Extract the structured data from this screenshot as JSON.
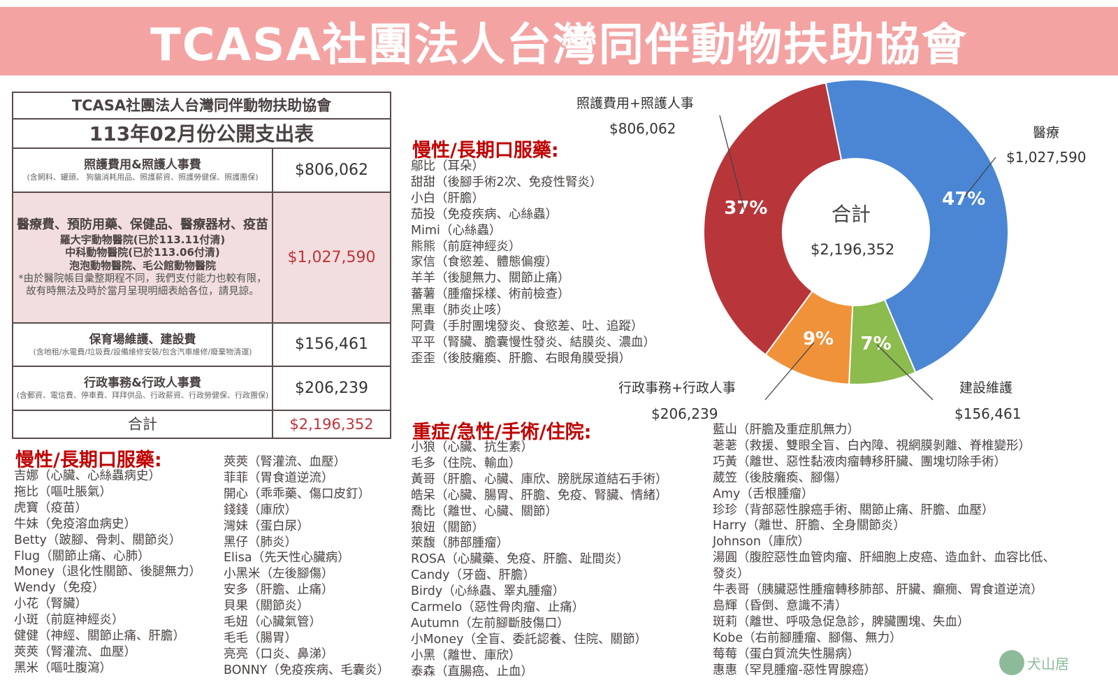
{
  "banner_title": "TCASA社團法人台灣同伴動物扶助協會",
  "table": {
    "org": "TCASA社團法人台灣同伴動物扶助協會",
    "title": "113年02月份公開支出表",
    "rows": [
      {
        "label": "照護費用&照護人事費",
        "note": "(含飼料、罐頭、 狗貓消耗用品、照護薪資、照護勞健保、照護團保)",
        "amount": "$806,062"
      },
      {
        "label": "醫療費、預防用藥、保健品、醫療器材、疫苗",
        "hosp1": "羅大宇動物醫院(已於113.11付清)",
        "hosp2": "中科動物醫院(已於113.06付清)",
        "hosp3": "泡泡動物醫院、毛公館動物醫院",
        "note": "*由於醫院帳目彙整期程不同，我們支付能力也較有限，故有時無法及時於當月呈現明細表給各位，請見諒。",
        "amount": "$1,027,590"
      },
      {
        "label": "保育場維護、建設費",
        "note": "(含地租/水電費/垃圾費/設備維修安裝/包含汽車維修/廢棄物清運)",
        "amount": "$156,461"
      },
      {
        "label": "行政事務&行政人事費",
        "note": "(含郵資、電信費、停車費、拜拜供品、行政薪資、行政勞健保、行政團保)",
        "amount": "$206,239"
      }
    ],
    "total_label": "合計",
    "total": "$2,196,352"
  },
  "chart_data": {
    "type": "pie",
    "donut": true,
    "center_label": "合計",
    "center_value": "$2,196,352",
    "slices": [
      {
        "name": "醫療",
        "amount": "$1,027,590",
        "value": 1027590,
        "pct": "47%",
        "color": "#4a86d4"
      },
      {
        "name": "建設維護",
        "amount": "$156,461",
        "value": 156461,
        "pct": "7%",
        "color": "#8cbb4e"
      },
      {
        "name": "行政事務+行政人事",
        "amount": "$206,239",
        "value": 206239,
        "pct": "9%",
        "color": "#f0923a"
      },
      {
        "name": "照護費用+照護人事",
        "amount": "$806,062",
        "value": 806062,
        "pct": "37%",
        "color": "#b8353a"
      }
    ]
  },
  "chronic_heading": "慢性/長期口服藥:",
  "critical_heading": "重症/急性/手術/住院:",
  "chronic_mid": [
    "鄔比（耳朵）",
    "甜甜（後腳手術2次、免疫性腎炎）",
    "小白（肝膽）",
    "茄投（免疫疾病、心絲蟲）",
    "Mimi（心絲蟲）",
    "熊熊（前庭神經炎）",
    "家信（食慾差、體態偏瘦）",
    "羊羊（後腿無力、關節止痛）",
    "蕃薯（腫瘤採樣、術前檢查）",
    "黑車（肺炎止咳）",
    "阿貴（手肘團塊發炎、食慾差、吐、追蹤）",
    "平平（腎臟、膽囊慢性發炎、結膜炎、濃血）",
    "歪歪（後肢癱瘓、肝膽、右眼角膜受損）"
  ],
  "chronic_left1": [
    "吉娜（心臟、心絲蟲病史）",
    "拖比（嘔吐脹氣）",
    "虎寶（疫苗）",
    "牛妹（免疫溶血病史）",
    "Betty（跛腳、骨刺、關節炎）",
    "Flug（關節止痛、心肺）",
    "Money（退化性關節、後腿無力）",
    "Wendy（免疫）",
    "小花（腎臟）",
    "小斑（前庭神經炎）",
    "健健（神經、關節止痛、肝膽）",
    "莢莢（腎灌流、血壓）",
    "黑米（嘔吐腹瀉）"
  ],
  "chronic_left2": [
    "莢莢（腎灌流、血壓）",
    "菲菲（胃食道逆流）",
    "開心（乖乖藥、傷口皮釘）",
    "錢錢（庫欣）",
    "灣妹（蛋白尿）",
    "黑仔（肺炎）",
    "Elisa（先天性心臟病）",
    "小黑米（左後腳傷）",
    "安多（肝膽、止痛）",
    "貝果（關節炎）",
    "毛妞（心臟氣管）",
    "毛毛（腸胃）",
    "亮亮（口炎、鼻涕）",
    "BONNY（免疫疾病、毛囊炎）"
  ],
  "critical_mid": [
    "小狼（心臟、抗生素）",
    "毛多（住院、輸血）",
    "黃哥（肝膽、心臟、庫欣、膀胱尿道結石手術）",
    "皓呆（心臟、腸胃、肝膽、免疫、腎臟、情緒）",
    "喬比（離世、心臟、關節）",
    "狼妞（關節）",
    "萊馥（肺部腫瘤）",
    "ROSA（心臟藥、免疫、肝膽、趾間炎）",
    "Candy（牙齒、肝膽）",
    "Birdy（心絲蟲、睪丸腫瘤）",
    "Carmelo（惡性骨肉瘤、止痛）",
    "Autumn（左前腳斷肢傷口）",
    "小Money（全盲、委託認養、住院、關節）",
    "小黑（離世、庫欣）",
    "泰森（直腸癌、止血）"
  ],
  "critical_right": [
    "藍山（肝膽及重症肌無力）",
    "荖荖（救援、雙眼全盲、白內障、視網膜剝離、脊椎變形）",
    "巧黃（離世、惡性黏液肉瘤轉移肝臟、團塊切除手術）",
    "葳笠（後肢癱瘓、腳傷）",
    "Amy（舌根腫瘤）",
    "珍珍（背部惡性腺癌手術、關節止痛、肝膽、血壓）",
    "Harry（離世、肝膽、全身關節炎）",
    "Johnson（庫欣）",
    "湯圓（腹腔惡性血管肉瘤、肝細胞上皮癌、造血針、血容比低、",
    "發炎）",
    "牛表哥（胰臟惡性腫瘤轉移肺部、肝臟、癲癇、胃食道逆流）",
    "島輝（昏倒、意識不清）",
    "斑莉（離世、呼吸急促急診，脾臟團塊、失血）",
    "Kobe（右前腳腫瘤、腳傷、無力）",
    "莓莓（蛋白質流失性腸病）",
    "惠惠（罕見腫瘤-惡性胃腺癌）"
  ],
  "logo_text": "犬山居"
}
